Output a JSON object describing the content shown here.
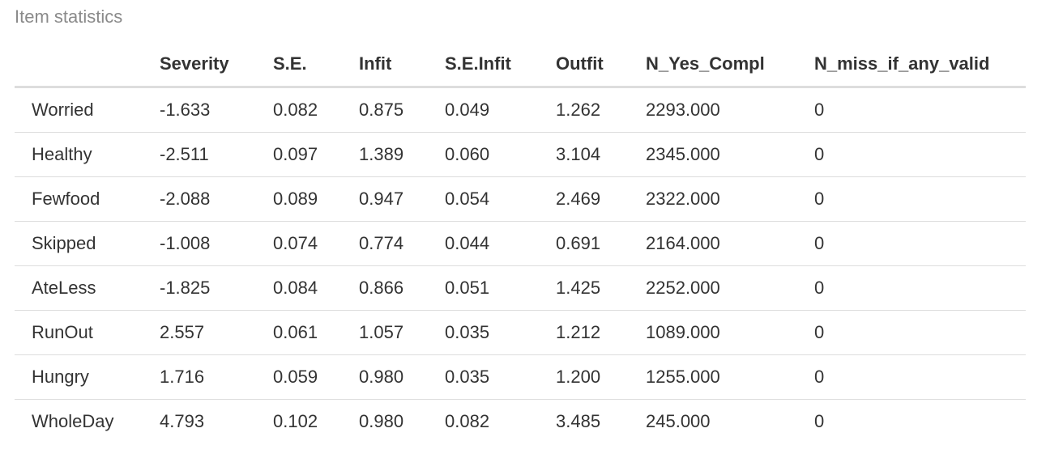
{
  "caption": "Item statistics",
  "columns": [
    "",
    "Severity",
    "S.E.",
    "Infit",
    "S.E.Infit",
    "Outfit",
    "N_Yes_Compl",
    "N_miss_if_any_valid"
  ],
  "rows": [
    [
      "Worried",
      "-1.633",
      "0.082",
      "0.875",
      "0.049",
      "1.262",
      "2293.000",
      "0"
    ],
    [
      "Healthy",
      "-2.511",
      "0.097",
      "1.389",
      "0.060",
      "3.104",
      "2345.000",
      "0"
    ],
    [
      "Fewfood",
      "-2.088",
      "0.089",
      "0.947",
      "0.054",
      "2.469",
      "2322.000",
      "0"
    ],
    [
      "Skipped",
      "-1.008",
      "0.074",
      "0.774",
      "0.044",
      "0.691",
      "2164.000",
      "0"
    ],
    [
      "AteLess",
      "-1.825",
      "0.084",
      "0.866",
      "0.051",
      "1.425",
      "2252.000",
      "0"
    ],
    [
      "RunOut",
      "2.557",
      "0.061",
      "1.057",
      "0.035",
      "1.212",
      "1089.000",
      "0"
    ],
    [
      "Hungry",
      "1.716",
      "0.059",
      "0.980",
      "0.035",
      "1.200",
      "1255.000",
      "0"
    ],
    [
      "WholeDay",
      "4.793",
      "0.102",
      "0.980",
      "0.082",
      "3.485",
      "245.000",
      "0"
    ]
  ]
}
